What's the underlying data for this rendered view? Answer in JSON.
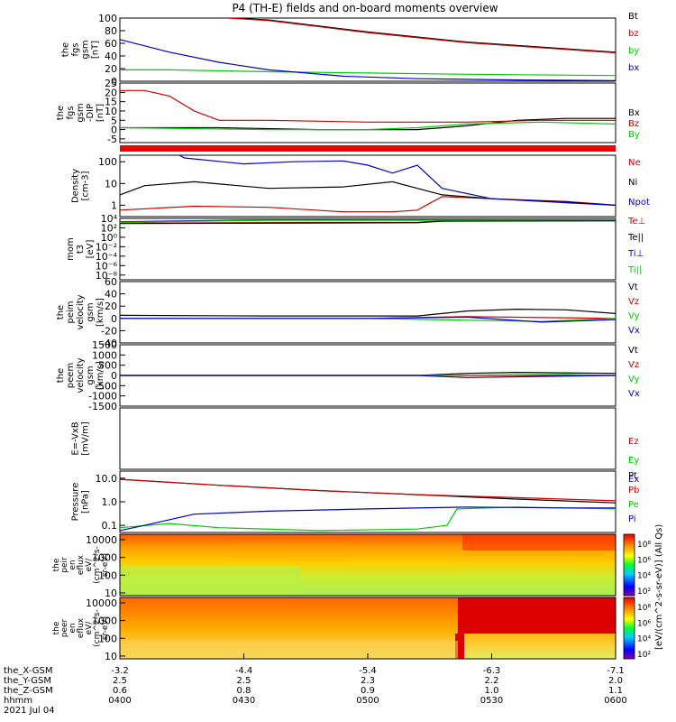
{
  "title": "P4 (TH-E) fields and on-board moments overview",
  "chart_data": [
    {
      "type": "line",
      "panel_id": "fgs-gsm-nt",
      "ylabel": [
        "the",
        "fgs",
        "gsm",
        "[nT]"
      ],
      "ylim": [
        0,
        100
      ],
      "yticks": [
        "100",
        "80",
        "60",
        "40",
        "20",
        "0"
      ],
      "series": [
        {
          "name": "Bt",
          "color": "#000000",
          "x": [
            0.22,
            0.3,
            0.5,
            0.7,
            1.0
          ],
          "y": [
            100,
            97,
            78,
            62,
            46
          ]
        },
        {
          "name": "bz",
          "color": "#cc0000",
          "x": [
            0.22,
            0.3,
            0.5,
            0.7,
            1.0
          ],
          "y": [
            100,
            96,
            77,
            61,
            45
          ]
        },
        {
          "name": "by",
          "color": "#00cc00",
          "x": [
            0,
            0.1,
            0.3,
            0.5,
            0.7,
            1.0
          ],
          "y": [
            18,
            18,
            15,
            13,
            11,
            9
          ]
        },
        {
          "name": "bx",
          "color": "#0000cc",
          "x": [
            0,
            0.1,
            0.2,
            0.3,
            0.45,
            0.6,
            0.8,
            1.0
          ],
          "y": [
            66,
            46,
            30,
            18,
            8,
            4,
            2,
            1
          ]
        }
      ]
    },
    {
      "type": "line",
      "panel_id": "fgs-gsm-dip",
      "ylabel": [
        "the",
        "fgs",
        "gsm",
        "-DIP",
        "[nT]"
      ],
      "ylim": [
        -7,
        25
      ],
      "yticks": [
        "25",
        "20",
        "15",
        "10",
        "5",
        "0",
        "-5"
      ],
      "series": [
        {
          "name": "Bx",
          "color": "#000000",
          "x": [
            0,
            0.2,
            0.4,
            0.6,
            0.7,
            0.8,
            0.9,
            1.0
          ],
          "y": [
            1,
            1,
            0,
            0,
            2,
            5,
            6,
            6
          ]
        },
        {
          "name": "Bz",
          "color": "#cc0000",
          "x": [
            0,
            0.05,
            0.1,
            0.15,
            0.2,
            0.3,
            0.5,
            0.7,
            0.85,
            1.0
          ],
          "y": [
            21,
            21,
            18,
            10,
            5,
            5,
            4,
            4,
            5,
            5
          ]
        },
        {
          "name": "By",
          "color": "#00cc00",
          "x": [
            0,
            0.3,
            0.5,
            0.6,
            0.7,
            0.85,
            1.0
          ],
          "y": [
            1,
            0,
            0,
            1,
            3,
            4,
            3
          ]
        }
      ]
    },
    {
      "type": "line",
      "panel_id": "density",
      "ylabel": [
        "Density",
        "[cm-3]"
      ],
      "yscale": "log",
      "ylim": [
        0.3,
        200
      ],
      "yticks": [
        "100",
        "10",
        "1"
      ],
      "series": [
        {
          "name": "Ne",
          "color": "#cc0000",
          "x": [
            0,
            0.15,
            0.3,
            0.45,
            0.55,
            0.6,
            0.65,
            0.75,
            0.9,
            1.0
          ],
          "y": [
            0.6,
            0.9,
            0.8,
            0.5,
            0.5,
            0.6,
            2.5,
            2.0,
            1.5,
            1.0
          ]
        },
        {
          "name": "Ni",
          "color": "#000000",
          "x": [
            0,
            0.05,
            0.15,
            0.3,
            0.45,
            0.55,
            0.6,
            0.65,
            0.75,
            0.9,
            1.0
          ],
          "y": [
            3,
            8,
            12,
            6,
            7,
            12,
            6,
            3,
            2,
            1.4,
            1.0
          ]
        },
        {
          "name": "Npot",
          "color": "#0000cc",
          "x": [
            0.12,
            0.13,
            0.25,
            0.35,
            0.45,
            0.5,
            0.55,
            0.6,
            0.65,
            0.75,
            0.9,
            1.0
          ],
          "y": [
            200,
            150,
            80,
            100,
            110,
            70,
            30,
            70,
            6,
            2.0,
            1.3,
            1.0
          ]
        }
      ]
    },
    {
      "type": "line",
      "panel_id": "moment-temperature",
      "ylabel": [
        "mom",
        "t3",
        "[eV]"
      ],
      "yscale": "log",
      "ylim": [
        1e-09,
        10000
      ],
      "yticks": [
        "10⁴",
        "10²",
        "10⁰",
        "10⁻²",
        "10⁻⁴",
        "10⁻⁶",
        "10⁻⁸"
      ],
      "series": [
        {
          "name": "Te⊥",
          "color": "#cc0000",
          "x": [
            0,
            0.6,
            0.65,
            1.0
          ],
          "y": [
            1000,
            1500,
            3000,
            3000
          ]
        },
        {
          "name": "Te||",
          "color": "#000000",
          "x": [
            0,
            0.6,
            0.65,
            1.0
          ],
          "y": [
            800,
            1200,
            2500,
            3000
          ]
        },
        {
          "name": "Ti⊥",
          "color": "#0000cc",
          "x": [
            0,
            0.3,
            0.6,
            1.0
          ],
          "y": [
            2000,
            5000,
            5000,
            5000
          ]
        },
        {
          "name": "Ti||",
          "color": "#00cc00",
          "x": [
            0,
            0.3,
            0.6,
            1.0
          ],
          "y": [
            1500,
            4000,
            4000,
            5000
          ]
        }
      ]
    },
    {
      "type": "line",
      "panel_id": "peim-velocity",
      "ylabel": [
        "the",
        "peim",
        "velocity",
        "gsm",
        "[km/s]"
      ],
      "ylim": [
        -40,
        60
      ],
      "yticks": [
        "60",
        "40",
        "20",
        "0",
        "-20",
        "-40"
      ],
      "series": [
        {
          "name": "Vt",
          "color": "#000000",
          "x": [
            0,
            0.3,
            0.6,
            0.7,
            0.8,
            0.9,
            1.0
          ],
          "y": [
            5,
            4,
            4,
            12,
            15,
            14,
            8
          ]
        },
        {
          "name": "Vz",
          "color": "#cc0000",
          "x": [
            0,
            0.5,
            0.7,
            1.0
          ],
          "y": [
            0,
            0,
            3,
            0
          ]
        },
        {
          "name": "Vy",
          "color": "#00cc00",
          "x": [
            0,
            0.5,
            0.7,
            0.85,
            1.0
          ],
          "y": [
            0,
            0,
            -3,
            -5,
            0
          ]
        },
        {
          "name": "Vx",
          "color": "#0000cc",
          "x": [
            0,
            0.5,
            0.7,
            0.85,
            1.0
          ],
          "y": [
            0,
            0,
            2,
            -6,
            -2
          ]
        }
      ]
    },
    {
      "type": "line",
      "panel_id": "peem-velocity",
      "ylabel": [
        "the",
        "peem",
        "velocity",
        "gsm",
        "[km/s]"
      ],
      "ylim": [
        -1500,
        1500
      ],
      "yticks": [
        "1500",
        "1000",
        "500",
        "0",
        "-500",
        "-1000",
        "-1500"
      ],
      "series": [
        {
          "name": "Vt",
          "color": "#000000",
          "x": [
            0,
            0.6,
            0.7,
            0.8,
            1.0
          ],
          "y": [
            0,
            0,
            100,
            150,
            100
          ]
        },
        {
          "name": "Vz",
          "color": "#cc0000",
          "x": [
            0,
            0.6,
            1.0
          ],
          "y": [
            0,
            0,
            0
          ]
        },
        {
          "name": "Vy",
          "color": "#00cc00",
          "x": [
            0,
            0.6,
            0.9,
            1.0
          ],
          "y": [
            0,
            0,
            50,
            0
          ]
        },
        {
          "name": "Vx",
          "color": "#0000cc",
          "x": [
            0,
            0.6,
            0.7,
            1.0
          ],
          "y": [
            0,
            0,
            -100,
            0
          ]
        }
      ]
    },
    {
      "type": "line",
      "panel_id": "electric-field",
      "ylabel": [
        "E=-VxB",
        "[mV/m]"
      ],
      "series": [
        {
          "name": "Ez",
          "color": "#cc0000"
        },
        {
          "name": "Ey",
          "color": "#00cc00"
        },
        {
          "name": "Ex",
          "color": "#0000cc"
        }
      ]
    },
    {
      "type": "line",
      "panel_id": "pressure",
      "ylabel": [
        "Pressure",
        "[nPa]"
      ],
      "yscale": "log",
      "ylim": [
        0.05,
        20
      ],
      "yticks": [
        "10.0",
        "1.0",
        "0.1"
      ],
      "series": [
        {
          "name": "Pt",
          "color": "#000000",
          "x": [
            0,
            0.2,
            0.4,
            0.6,
            0.8,
            1.0
          ],
          "y": [
            9,
            5,
            3,
            2,
            1.3,
            0.9
          ]
        },
        {
          "name": "Pb",
          "color": "#cc0000",
          "x": [
            0,
            0.2,
            0.4,
            0.6,
            0.8,
            1.0
          ],
          "y": [
            9,
            5,
            3,
            2,
            1.5,
            1.1
          ]
        },
        {
          "name": "Pe",
          "color": "#00cc00",
          "x": [
            0,
            0.1,
            0.2,
            0.4,
            0.6,
            0.66,
            0.68,
            0.8,
            1.0
          ],
          "y": [
            0.08,
            0.12,
            0.08,
            0.06,
            0.07,
            0.1,
            0.5,
            0.6,
            0.5
          ]
        },
        {
          "name": "Pi",
          "color": "#0000cc",
          "x": [
            0,
            0.05,
            0.15,
            0.3,
            0.5,
            0.7,
            0.9,
            1.0
          ],
          "y": [
            0.06,
            0.1,
            0.3,
            0.4,
            0.5,
            0.6,
            0.55,
            0.55
          ]
        }
      ]
    },
    {
      "type": "heatmap",
      "panel_id": "peir-en-eflux",
      "ylabel": [
        "the",
        "peir",
        "en",
        "eflux",
        "eV/",
        "(cm^2-s-",
        "sr-eV)"
      ],
      "yscale": "log",
      "yticks": [
        "10000",
        "1000",
        "100",
        "10"
      ],
      "colorbar_label": "[eV/(cm^2-s-sr-eV)] (All Qs)",
      "colorbar_ticks": [
        "10⁸",
        "10⁶",
        "10⁴",
        "10²"
      ]
    },
    {
      "type": "heatmap",
      "panel_id": "peer-en-eflux",
      "ylabel": [
        "the",
        "peer",
        "en",
        "eflux",
        "eV/",
        "(cm^2-s-",
        "sr-eV)"
      ],
      "yscale": "log",
      "yticks": [
        "10000",
        "1000",
        "100",
        "10"
      ],
      "colorbar_label": "[eV/(cm^2-s-sr-eV)] (All Qs)",
      "colorbar_ticks": [
        "10⁸",
        "10⁶",
        "10⁴",
        "10²"
      ]
    }
  ],
  "x_axis": {
    "rows": [
      {
        "label": "the_X-GSM",
        "values": [
          "-3.2",
          "-4.4",
          "-5.4",
          "-6.3",
          "-7.1"
        ]
      },
      {
        "label": "the_Y-GSM",
        "values": [
          "2.5",
          "2.5",
          "2.3",
          "2.2",
          "2.0"
        ]
      },
      {
        "label": "the_Z-GSM",
        "values": [
          "0.6",
          "0.8",
          "0.9",
          "1.0",
          "1.1"
        ]
      },
      {
        "label": "hhmm",
        "values": [
          "0400",
          "0430",
          "0500",
          "0530",
          "0600"
        ]
      }
    ],
    "date": "2021 Jul 04"
  },
  "colors": {
    "black": "#000000",
    "red": "#cc0000",
    "green": "#00cc00",
    "blue": "#0000cc"
  }
}
